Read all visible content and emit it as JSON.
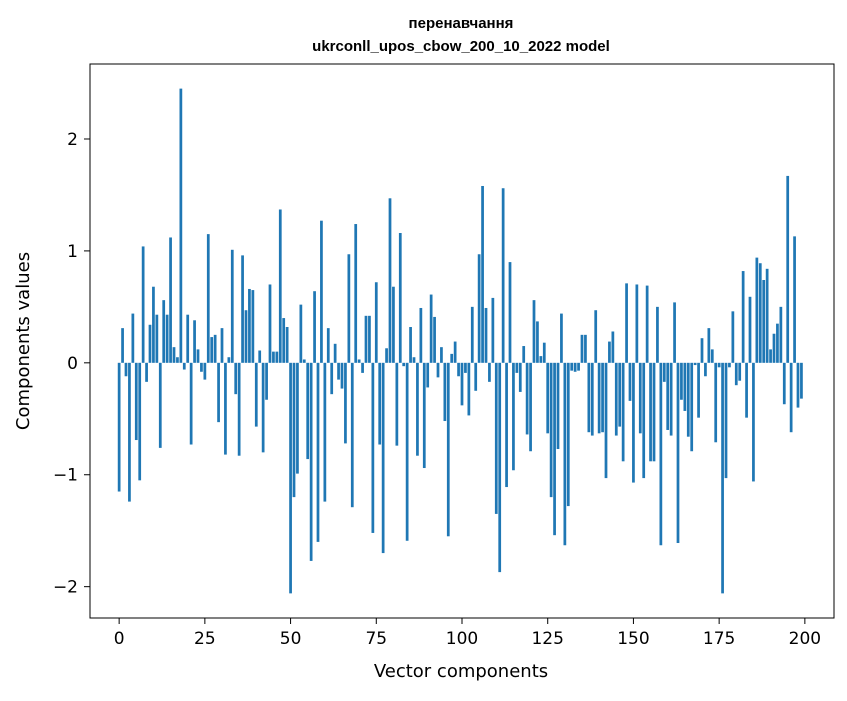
{
  "chart_data": {
    "type": "bar",
    "title": "перенавчання",
    "subtitle": "ukrconll_upos_cbow_200_10_2022 model",
    "xlabel": "Vector components",
    "ylabel": "Components values",
    "xlim": [
      -8.5,
      208.5
    ],
    "ylim": [
      -2.28,
      2.67
    ],
    "xticks": [
      0,
      25,
      50,
      75,
      100,
      125,
      150,
      175,
      200
    ],
    "yticks": [
      -2,
      -1,
      0,
      1,
      2
    ],
    "xtick_labels": [
      "0",
      "25",
      "50",
      "75",
      "100",
      "125",
      "150",
      "175",
      "200"
    ],
    "ytick_labels": [
      "−2",
      "−1",
      "0",
      "1",
      "2"
    ],
    "grid": false,
    "bar_color": "#1f77b4",
    "x": [
      0,
      1,
      2,
      3,
      4,
      5,
      6,
      7,
      8,
      9,
      10,
      11,
      12,
      13,
      14,
      15,
      16,
      17,
      18,
      19,
      20,
      21,
      22,
      23,
      24,
      25,
      26,
      27,
      28,
      29,
      30,
      31,
      32,
      33,
      34,
      35,
      36,
      37,
      38,
      39,
      40,
      41,
      42,
      43,
      44,
      45,
      46,
      47,
      48,
      49,
      50,
      51,
      52,
      53,
      54,
      55,
      56,
      57,
      58,
      59,
      60,
      61,
      62,
      63,
      64,
      65,
      66,
      67,
      68,
      69,
      70,
      71,
      72,
      73,
      74,
      75,
      76,
      77,
      78,
      79,
      80,
      81,
      82,
      83,
      84,
      85,
      86,
      87,
      88,
      89,
      90,
      91,
      92,
      93,
      94,
      95,
      96,
      97,
      98,
      99,
      100,
      101,
      102,
      103,
      104,
      105,
      106,
      107,
      108,
      109,
      110,
      111,
      112,
      113,
      114,
      115,
      116,
      117,
      118,
      119,
      120,
      121,
      122,
      123,
      124,
      125,
      126,
      127,
      128,
      129,
      130,
      131,
      132,
      133,
      134,
      135,
      136,
      137,
      138,
      139,
      140,
      141,
      142,
      143,
      144,
      145,
      146,
      147,
      148,
      149,
      150,
      151,
      152,
      153,
      154,
      155,
      156,
      157,
      158,
      159,
      160,
      161,
      162,
      163,
      164,
      165,
      166,
      167,
      168,
      169,
      170,
      171,
      172,
      173,
      174,
      175,
      176,
      177,
      178,
      179,
      180,
      181,
      182,
      183,
      184,
      185,
      186,
      187,
      188,
      189,
      190,
      191,
      192,
      193,
      194,
      195,
      196,
      197,
      198,
      199
    ],
    "values": [
      -1.15,
      0.31,
      -0.12,
      -1.24,
      0.44,
      -0.69,
      -1.05,
      1.04,
      -0.17,
      0.34,
      0.68,
      0.43,
      -0.76,
      0.56,
      0.43,
      1.12,
      0.14,
      0.05,
      2.45,
      -0.06,
      0.43,
      -0.73,
      0.38,
      0.12,
      -0.08,
      -0.15,
      1.15,
      0.23,
      0.25,
      -0.53,
      0.31,
      -0.82,
      0.05,
      1.01,
      -0.28,
      -0.83,
      0.96,
      0.47,
      0.66,
      0.65,
      -0.57,
      0.11,
      -0.8,
      -0.33,
      0.7,
      0.1,
      0.1,
      1.37,
      0.4,
      0.32,
      -2.06,
      -1.2,
      -0.99,
      0.52,
      0.03,
      -0.86,
      -1.77,
      0.64,
      -1.6,
      1.27,
      -1.24,
      0.31,
      -0.28,
      0.17,
      -0.15,
      -0.23,
      -0.72,
      0.97,
      -1.29,
      1.24,
      0.03,
      -0.09,
      0.42,
      0.42,
      -1.52,
      0.72,
      -0.73,
      -1.7,
      0.13,
      1.47,
      0.68,
      -0.74,
      1.16,
      -0.03,
      -1.59,
      0.32,
      0.05,
      -0.83,
      0.49,
      -0.94,
      -0.22,
      0.61,
      0.41,
      -0.13,
      0.14,
      -0.52,
      -1.55,
      0.08,
      0.19,
      -0.12,
      -0.38,
      -0.09,
      -0.47,
      0.5,
      -0.25,
      0.97,
      1.58,
      0.49,
      -0.17,
      0.58,
      -1.35,
      -1.87,
      1.56,
      -1.11,
      0.9,
      -0.96,
      -0.09,
      -0.26,
      0.15,
      -0.64,
      -0.79,
      0.56,
      0.37,
      0.06,
      0.18,
      -0.63,
      -1.2,
      -1.54,
      -0.77,
      0.44,
      -1.63,
      -1.28,
      -0.07,
      -0.08,
      -0.07,
      0.25,
      0.25,
      -0.62,
      -0.65,
      0.47,
      -0.63,
      -0.62,
      -1.03,
      0.19,
      0.28,
      -0.65,
      -0.57,
      -0.88,
      0.71,
      -0.34,
      -1.07,
      0.7,
      -0.63,
      -1.03,
      0.69,
      -0.88,
      -0.88,
      0.5,
      -1.63,
      -0.17,
      -0.6,
      -0.65,
      0.54,
      -1.61,
      -0.33,
      -0.43,
      -0.66,
      -0.79,
      -0.02,
      -0.49,
      0.22,
      -0.12,
      0.31,
      0.12,
      -0.71,
      -0.04,
      -2.06,
      -1.03,
      -0.04,
      0.46,
      -0.2,
      -0.16,
      0.82,
      -0.49,
      0.59,
      -1.06,
      0.94,
      0.89,
      0.74,
      0.84,
      0.12,
      0.26,
      0.35,
      0.5,
      -0.37,
      1.67,
      -0.62,
      1.13,
      -0.4,
      -0.32
    ]
  }
}
